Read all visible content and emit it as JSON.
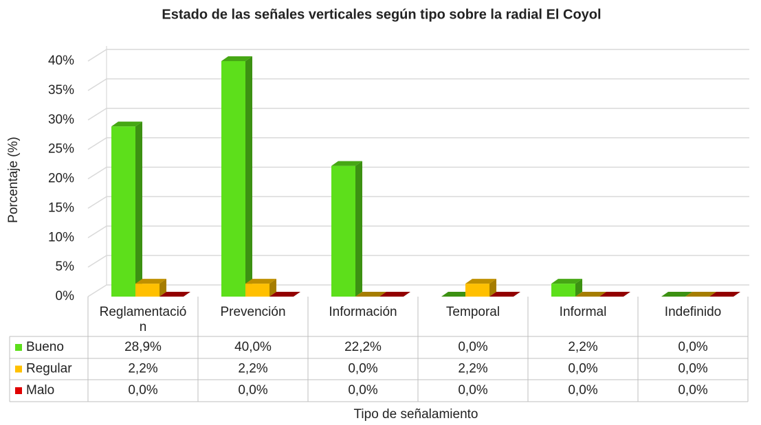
{
  "chart_data": {
    "type": "bar3d",
    "title": "Estado de las señales verticales según tipo sobre la radial El Coyol",
    "x_label": "Tipo de señalamiento",
    "y_label": "Porcentaje (%)",
    "categories": [
      "Reglamentación",
      "Prevención",
      "Información",
      "Temporal",
      "Informal",
      "Indefinido"
    ],
    "series": [
      {
        "name": "Bueno",
        "color": "#5ddf1b",
        "values": [
          28.9,
          40.0,
          22.2,
          0.0,
          2.2,
          0.0
        ],
        "value_labels": [
          "28,9%",
          "40,0%",
          "22,2%",
          "0,0%",
          "2,2%",
          "0,0%"
        ]
      },
      {
        "name": "Regular",
        "color": "#ffc000",
        "values": [
          2.2,
          2.2,
          0.0,
          2.2,
          0.0,
          0.0
        ],
        "value_labels": [
          "2,2%",
          "2,2%",
          "0,0%",
          "2,2%",
          "0,0%",
          "0,0%"
        ]
      },
      {
        "name": "Malo",
        "color": "#e00000",
        "values": [
          0.0,
          0.0,
          0.0,
          0.0,
          0.0,
          0.0
        ],
        "value_labels": [
          "0,0%",
          "0,0%",
          "0,0%",
          "0,0%",
          "0,0%",
          "0,0%"
        ]
      }
    ],
    "ylim": [
      0,
      40
    ],
    "yticks": [
      {
        "value": 0,
        "label": "0%"
      },
      {
        "value": 5,
        "label": "5%"
      },
      {
        "value": 10,
        "label": "10%"
      },
      {
        "value": 15,
        "label": "15%"
      },
      {
        "value": 20,
        "label": "20%"
      },
      {
        "value": 25,
        "label": "25%"
      },
      {
        "value": 30,
        "label": "30%"
      },
      {
        "value": 35,
        "label": "35%"
      },
      {
        "value": 40,
        "label": "40%"
      }
    ],
    "grid": true,
    "legend": "table"
  }
}
